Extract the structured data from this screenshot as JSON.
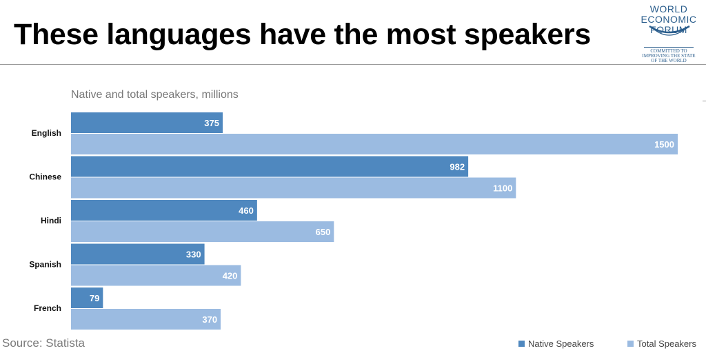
{
  "header": {
    "title": "These languages have the most speakers"
  },
  "logo": {
    "line1": "WORLD",
    "line2": "ECONOMIC",
    "line3": "FORUM",
    "tagline1": "COMMITTED TO",
    "tagline2": "IMPROVING THE STATE",
    "tagline3": "OF THE WORLD",
    "color": "#2a5d8c"
  },
  "source": "Source: Statista",
  "chart_data": {
    "type": "bar",
    "orientation": "horizontal",
    "subtitle": "Native and total speakers, millions",
    "categories": [
      "English",
      "Chinese",
      "Hindi",
      "Spanish",
      "French"
    ],
    "series": [
      {
        "name": "Native Speakers",
        "color": "#4f88bf",
        "values": [
          375,
          982,
          460,
          330,
          79
        ]
      },
      {
        "name": "Total Speakers",
        "color": "#9bbbe1",
        "values": [
          1500,
          1100,
          650,
          420,
          370
        ]
      }
    ],
    "xlim": [
      0,
      1500
    ],
    "grid": false,
    "data_labels": true,
    "legend_position": "bottom-right"
  }
}
